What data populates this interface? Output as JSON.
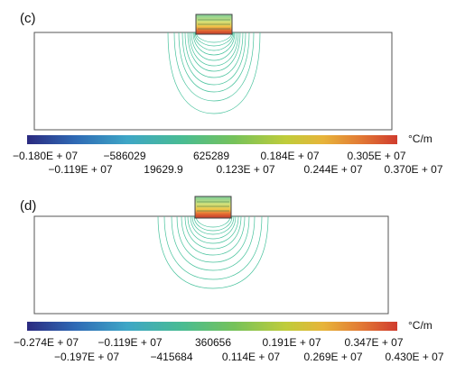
{
  "panels": [
    {
      "label": "(c)",
      "unit": "°C/m",
      "ticks_row1": [
        "−0.180E + 07",
        "−586029",
        "625289",
        "0.184E + 07",
        "0.305E + 07"
      ],
      "ticks_row2": [
        "−0.119E + 07",
        "19629.9",
        "0.123E + 07",
        "0.244E + 07",
        "0.370E + 07"
      ]
    },
    {
      "label": "(d)",
      "unit": "°C/m",
      "ticks_row1": [
        "−0.274E + 07",
        "−0.119E + 07",
        "360656",
        "0.191E + 07",
        "0.347E + 07"
      ],
      "ticks_row2": [
        "−0.197E + 07",
        "−415684",
        "0.114E + 07",
        "0.269E + 07",
        "0.430E + 07"
      ]
    }
  ],
  "colors": {
    "colorbar": [
      "#2b2a80",
      "#2f6ab5",
      "#3ea6c6",
      "#49bc92",
      "#76c25a",
      "#c0cc3a",
      "#e7b43a",
      "#e27a35",
      "#d03c2e"
    ],
    "contour": "#47c29c",
    "heater": "#c0392b"
  }
}
